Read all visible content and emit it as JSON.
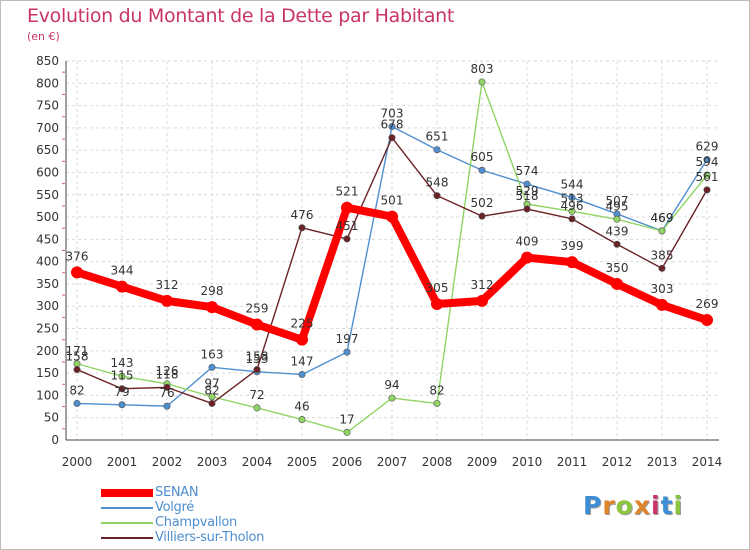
{
  "header": {
    "title": "Evolution du Montant de la Dette par Habitant",
    "unit": "(en €)"
  },
  "logo": {
    "letters": [
      "P",
      "r",
      "o",
      "x",
      "i",
      "t",
      "i"
    ],
    "colors": [
      "#3d8ed6",
      "#e0842a",
      "#8cc63f",
      "#e0842a",
      "#c8346a",
      "#3d8ed6",
      "#8cc63f"
    ]
  },
  "chart_data": {
    "type": "line",
    "title": "Evolution du Montant de la Dette par Habitant",
    "subtitle": "(en €)",
    "xlabel": "",
    "ylabel": "",
    "x": [
      "2000",
      "2001",
      "2002",
      "2003",
      "2004",
      "2005",
      "2006",
      "2007",
      "2008",
      "2009",
      "2010",
      "2011",
      "2012",
      "2013",
      "2014"
    ],
    "ylim": [
      0,
      850
    ],
    "yticks": [
      0,
      50,
      100,
      150,
      200,
      250,
      300,
      350,
      400,
      450,
      500,
      550,
      600,
      650,
      700,
      750,
      800,
      850
    ],
    "grid": true,
    "legend_position": "bottom-left",
    "series": [
      {
        "name": "SENAN",
        "color": "#ff0000",
        "values": [
          376,
          344,
          312,
          298,
          259,
          225,
          521,
          501,
          305,
          312,
          409,
          399,
          350,
          303,
          269
        ]
      },
      {
        "name": "Volgré",
        "color": "#4f8fcf",
        "values": [
          82,
          79,
          76,
          163,
          153,
          147,
          197,
          703,
          651,
          605,
          574,
          544,
          507,
          469,
          629
        ]
      },
      {
        "name": "Champvallon",
        "color": "#8fd464",
        "values": [
          171,
          143,
          126,
          97,
          72,
          46,
          17,
          94,
          82,
          803,
          529,
          513,
          495,
          469,
          594
        ]
      },
      {
        "name": "Villiers-sur-Tholon",
        "color": "#6b2227",
        "values": [
          158,
          115,
          118,
          82,
          158,
          476,
          451,
          678,
          548,
          502,
          518,
          496,
          439,
          385,
          561
        ]
      }
    ]
  }
}
